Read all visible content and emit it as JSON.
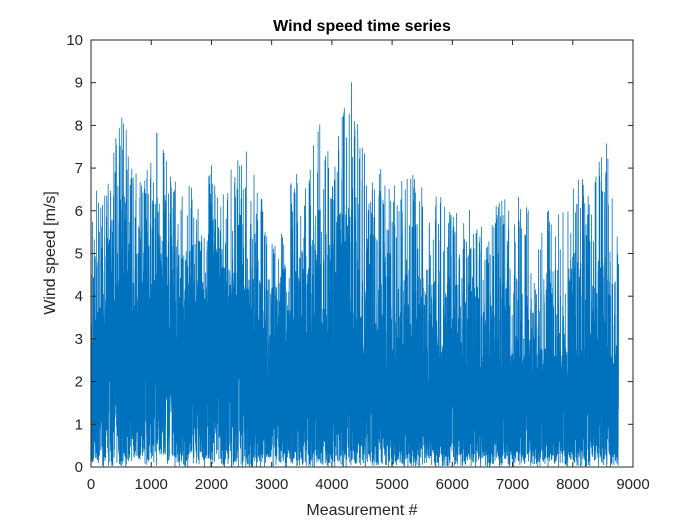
{
  "chart_data": {
    "type": "line",
    "title": "Wind speed time series",
    "xlabel": "Measurement #",
    "ylabel": "Wind speed [m/s]",
    "xlim": [
      0,
      9000
    ],
    "ylim": [
      0,
      10
    ],
    "xticks": [
      0,
      1000,
      2000,
      3000,
      4000,
      5000,
      6000,
      7000,
      8000,
      9000
    ],
    "yticks": [
      0,
      1,
      2,
      3,
      4,
      5,
      6,
      7,
      8,
      9,
      10
    ],
    "grid": false,
    "legend": "none",
    "n_points": 8760,
    "series": [
      {
        "color": "#0072BD",
        "x_step": 1,
        "envelope_x": [
          0,
          100,
          250,
          350,
          550,
          700,
          900,
          1050,
          1250,
          1500,
          1800,
          2000,
          2300,
          2600,
          2750,
          2900,
          3100,
          3300,
          3600,
          3800,
          4000,
          4300,
          4600,
          4800,
          5000,
          5300,
          5500,
          5700,
          6000,
          6300,
          6600,
          6900,
          7200,
          7500,
          7800,
          8100,
          8300,
          8550,
          8650,
          8760
        ],
        "envelope_max": [
          6.2,
          6.6,
          6.5,
          7.3,
          8.6,
          6.9,
          6.8,
          8.2,
          7.6,
          6.7,
          6.5,
          7.1,
          6.9,
          7.6,
          7.0,
          6.1,
          5.3,
          6.8,
          7.2,
          8.1,
          7.3,
          9.3,
          7.3,
          7.1,
          6.6,
          6.8,
          7.0,
          6.6,
          5.9,
          6.1,
          5.9,
          6.5,
          6.3,
          6.1,
          6.3,
          7.1,
          6.2,
          8.1,
          6.6,
          5.4
        ],
        "typical_level": [
          1.8,
          2.0,
          2.2,
          2.5,
          2.3,
          2.1,
          2.3,
          2.5,
          2.4,
          2.2,
          2.4,
          2.6,
          2.5,
          2.3,
          2.0,
          1.4,
          1.8,
          2.0,
          1.9,
          2.1,
          1.8,
          2.0,
          1.8,
          1.9,
          1.6,
          1.7,
          1.6,
          1.7,
          1.6,
          1.4,
          1.4,
          1.5,
          1.4,
          1.5,
          1.5,
          1.5,
          1.6,
          1.6,
          1.4,
          1.5
        ],
        "seed": 20240613
      }
    ]
  }
}
